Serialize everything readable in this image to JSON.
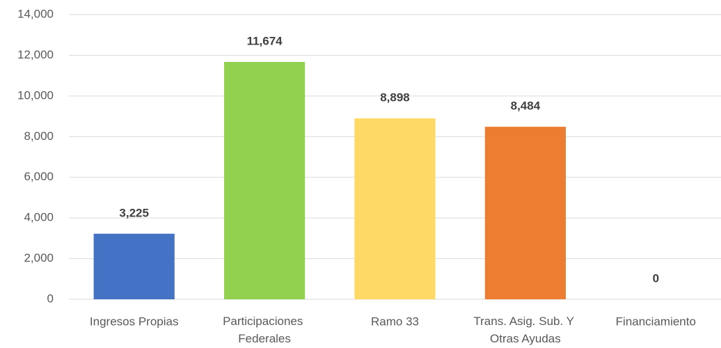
{
  "chart_data": {
    "type": "bar",
    "categories": [
      "Ingresos Propias",
      "Participaciones Federales",
      "Ramo 33",
      "Trans. Asig. Sub. Y Otras Ayudas",
      "Financiamiento"
    ],
    "values": [
      3225,
      11674,
      8898,
      8484,
      0
    ],
    "value_labels": [
      "3,225",
      "11,674",
      "8,898",
      "8,484",
      "0"
    ],
    "colors": [
      "#4472c4",
      "#92d050",
      "#ffd966",
      "#ed7d31",
      "#a5a5a5"
    ],
    "ylim": [
      0,
      14000
    ],
    "yticks": [
      0,
      {
        "value": 2000,
        "label": "2,000"
      },
      {
        "value": 4000,
        "label": "4,000"
      },
      {
        "value": 6000,
        "label": "6,000"
      },
      {
        "value": 8000,
        "label": "8,000"
      },
      {
        "value": 10000,
        "label": "10,000"
      },
      {
        "value": 12000,
        "label": "12,000"
      },
      {
        "value": 14000,
        "label": "14,000"
      }
    ],
    "grid": true
  }
}
